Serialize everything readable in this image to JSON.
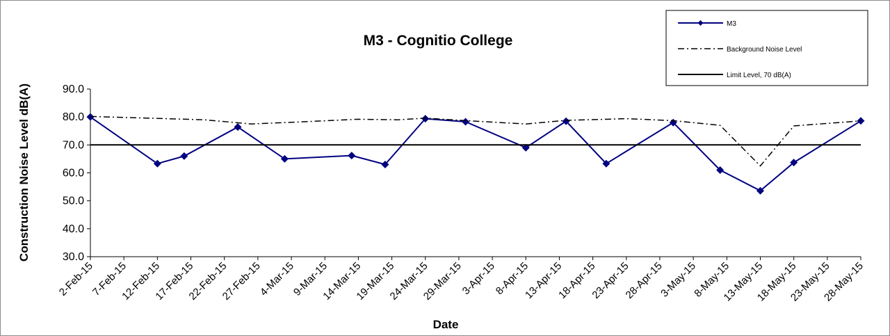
{
  "chart_data": {
    "type": "line",
    "title": "M3 - Cognitio College",
    "xlabel": "Date",
    "ylabel": "Construction Noise Level  dB(A)",
    "ylim": [
      30.0,
      90.0
    ],
    "yticks": [
      "30.0",
      "40.0",
      "50.0",
      "60.0",
      "70.0",
      "80.0",
      "90.0"
    ],
    "x_ticks": [
      "2-Feb-15",
      "7-Feb-15",
      "12-Feb-15",
      "17-Feb-15",
      "22-Feb-15",
      "27-Feb-15",
      "4-Mar-15",
      "9-Mar-15",
      "14-Mar-15",
      "19-Mar-15",
      "24-Mar-15",
      "29-Mar-15",
      "3-Apr-15",
      "8-Apr-15",
      "13-Apr-15",
      "18-Apr-15",
      "23-Apr-15",
      "28-Apr-15",
      "3-May-15",
      "8-May-15",
      "13-May-15",
      "18-May-15",
      "23-May-15",
      "28-May-15"
    ],
    "xlim": [
      "2-Feb-15",
      "28-May-15"
    ],
    "grid": false,
    "legend_position": "top-right",
    "series": [
      {
        "name": "M3",
        "style": "solid-diamond",
        "color": "#000080",
        "points": [
          {
            "x": "2-Feb-15",
            "y": 80.0
          },
          {
            "x": "12-Feb-15",
            "y": 63.3
          },
          {
            "x": "16-Feb-15",
            "y": 66.0
          },
          {
            "x": "24-Feb-15",
            "y": 76.4
          },
          {
            "x": "3-Mar-15",
            "y": 65.0
          },
          {
            "x": "13-Mar-15",
            "y": 66.2
          },
          {
            "x": "18-Mar-15",
            "y": 63.0
          },
          {
            "x": "24-Mar-15",
            "y": 79.4
          },
          {
            "x": "30-Mar-15",
            "y": 78.3
          },
          {
            "x": "8-Apr-15",
            "y": 69.0
          },
          {
            "x": "14-Apr-15",
            "y": 78.5
          },
          {
            "x": "20-Apr-15",
            "y": 63.3
          },
          {
            "x": "30-Apr-15",
            "y": 78.0
          },
          {
            "x": "7-May-15",
            "y": 61.0
          },
          {
            "x": "13-May-15",
            "y": 53.6
          },
          {
            "x": "18-May-15",
            "y": 63.7
          },
          {
            "x": "28-May-15",
            "y": 78.6
          }
        ]
      },
      {
        "name": "Background Noise Level",
        "style": "dash-dot",
        "color": "#000000",
        "points": [
          {
            "x": "2-Feb-15",
            "y": 80.2
          },
          {
            "x": "12-Feb-15",
            "y": 79.5
          },
          {
            "x": "19-Feb-15",
            "y": 79.0
          },
          {
            "x": "26-Feb-15",
            "y": 77.5
          },
          {
            "x": "5-Mar-15",
            "y": 78.2
          },
          {
            "x": "14-Mar-15",
            "y": 79.2
          },
          {
            "x": "20-Mar-15",
            "y": 79.0
          },
          {
            "x": "24-Mar-15",
            "y": 79.6
          },
          {
            "x": "30-Mar-15",
            "y": 78.7
          },
          {
            "x": "8-Apr-15",
            "y": 77.5
          },
          {
            "x": "14-Apr-15",
            "y": 78.8
          },
          {
            "x": "23-Apr-15",
            "y": 79.4
          },
          {
            "x": "30-Apr-15",
            "y": 78.7
          },
          {
            "x": "7-May-15",
            "y": 77.0
          },
          {
            "x": "13-May-15",
            "y": 62.5
          },
          {
            "x": "18-May-15",
            "y": 76.8
          },
          {
            "x": "28-May-15",
            "y": 78.6
          }
        ]
      },
      {
        "name": "Limit Level, 70 dB(A)",
        "style": "solid",
        "color": "#000000",
        "points": [
          {
            "x": "2-Feb-15",
            "y": 70.0
          },
          {
            "x": "28-May-15",
            "y": 70.0
          }
        ]
      }
    ]
  }
}
